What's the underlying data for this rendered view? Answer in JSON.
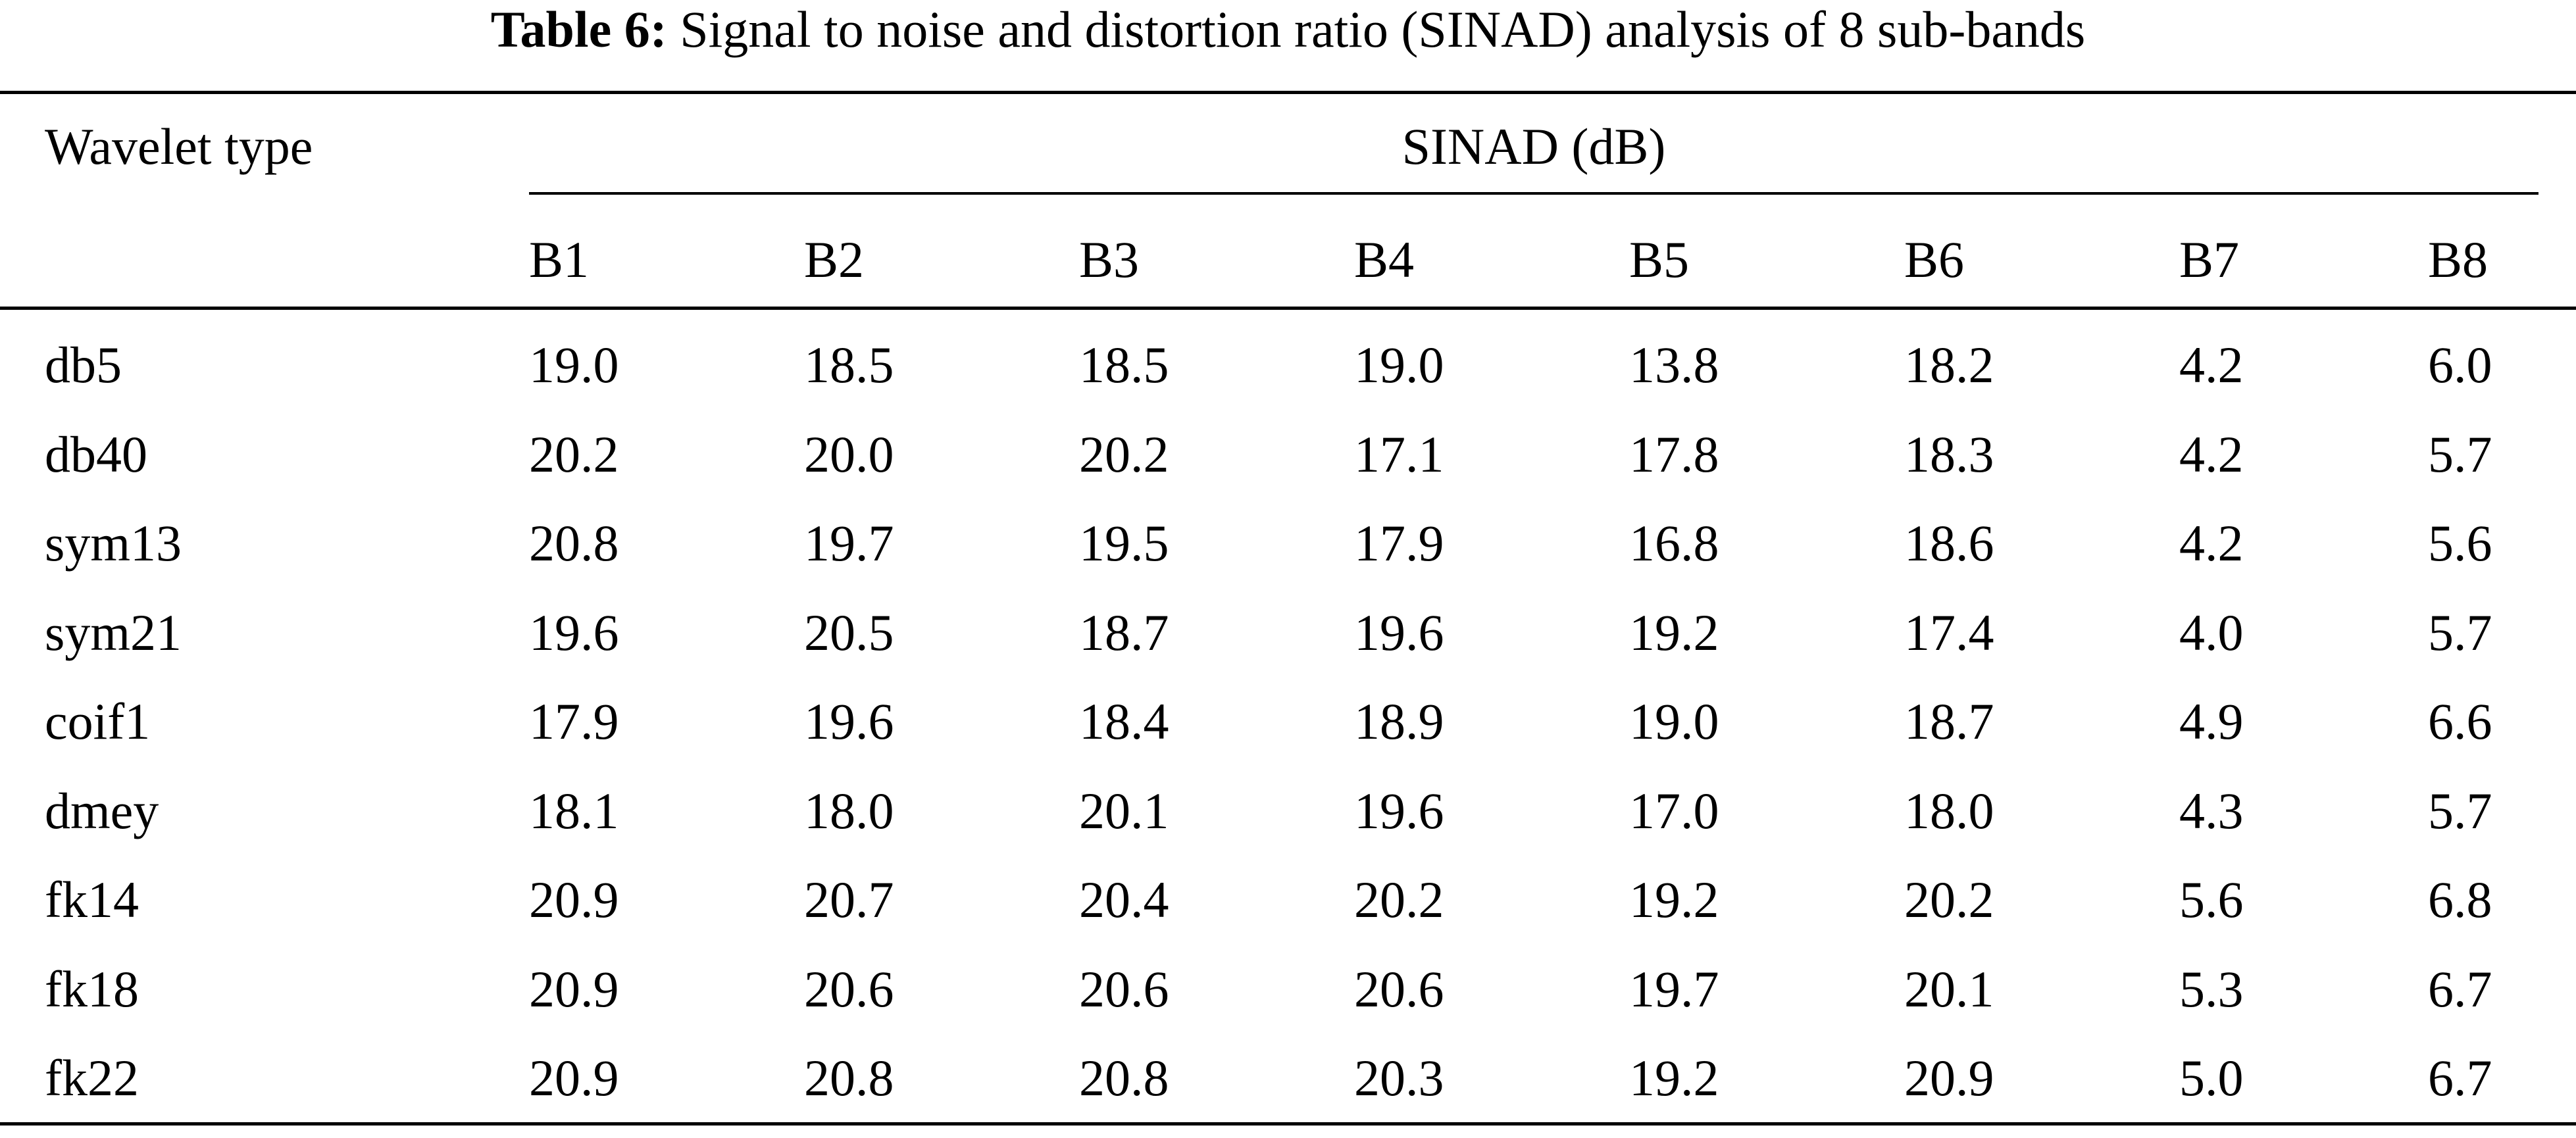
{
  "caption": {
    "label": "Table 6:",
    "text": "Signal to noise and distortion ratio (SINAD) analysis of 8 sub-bands"
  },
  "header": {
    "first_column": "Wavelet type",
    "group": "SINAD (dB)",
    "bands": [
      "B1",
      "B2",
      "B3",
      "B4",
      "B5",
      "B6",
      "B7",
      "B8"
    ]
  },
  "rows": [
    {
      "name": "db5",
      "values": [
        "19.0",
        "18.5",
        "18.5",
        "19.0",
        "13.8",
        "18.2",
        "4.2",
        "6.0"
      ]
    },
    {
      "name": "db40",
      "values": [
        "20.2",
        "20.0",
        "20.2",
        "17.1",
        "17.8",
        "18.3",
        "4.2",
        "5.7"
      ]
    },
    {
      "name": "sym13",
      "values": [
        "20.8",
        "19.7",
        "19.5",
        "17.9",
        "16.8",
        "18.6",
        "4.2",
        "5.6"
      ]
    },
    {
      "name": "sym21",
      "values": [
        "19.6",
        "20.5",
        "18.7",
        "19.6",
        "19.2",
        "17.4",
        "4.0",
        "5.7"
      ]
    },
    {
      "name": "coif1",
      "values": [
        "17.9",
        "19.6",
        "18.4",
        "18.9",
        "19.0",
        "18.7",
        "4.9",
        "6.6"
      ]
    },
    {
      "name": "dmey",
      "values": [
        "18.1",
        "18.0",
        "20.1",
        "19.6",
        "17.0",
        "18.0",
        "4.3",
        "5.7"
      ]
    },
    {
      "name": "fk14",
      "values": [
        "20.9",
        "20.7",
        "20.4",
        "20.2",
        "19.2",
        "20.2",
        "5.6",
        "6.8"
      ]
    },
    {
      "name": "fk18",
      "values": [
        "20.9",
        "20.6",
        "20.6",
        "20.6",
        "19.7",
        "20.1",
        "5.3",
        "6.7"
      ]
    },
    {
      "name": "fk22",
      "values": [
        "20.9",
        "20.8",
        "20.8",
        "20.3",
        "19.2",
        "20.9",
        "5.0",
        "6.7"
      ]
    }
  ]
}
